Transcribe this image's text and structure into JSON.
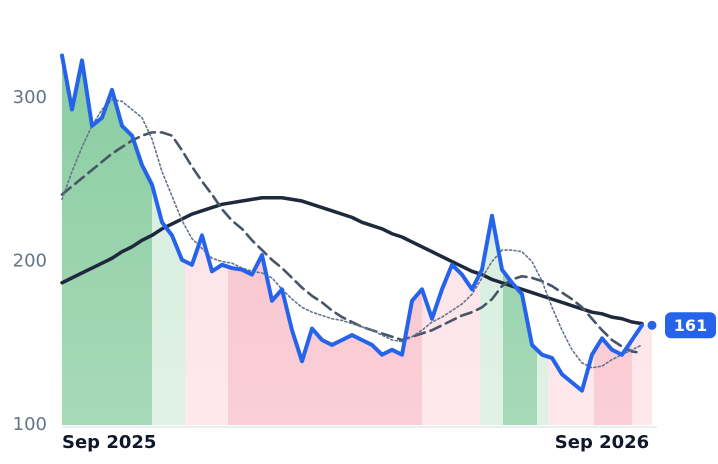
{
  "chart_data": {
    "type": "line",
    "categories": [
      "Sep 2025",
      null,
      null,
      null,
      null,
      null,
      null,
      null,
      null,
      null,
      null,
      null,
      null,
      null,
      null,
      null,
      null,
      null,
      null,
      null,
      null,
      null,
      null,
      null,
      null,
      null,
      null,
      null,
      null,
      null,
      null,
      null,
      null,
      null,
      null,
      null,
      null,
      null,
      null,
      null,
      null,
      null,
      null,
      null,
      null,
      null,
      null,
      null,
      null,
      null,
      null,
      null,
      null,
      null,
      "Sep 2026",
      null,
      null,
      null,
      null
    ],
    "series": [
      {
        "color": "#2563eb",
        "style": "solid",
        "width": 4,
        "values": [
          326,
          293,
          323,
          283,
          288,
          305,
          283,
          277,
          259,
          247,
          224,
          216,
          201,
          198,
          216,
          194,
          198,
          196,
          195,
          192,
          204,
          176,
          183,
          158,
          139,
          159,
          152,
          149,
          152,
          155,
          152,
          149,
          143,
          146,
          143,
          176,
          183,
          165,
          183,
          198,
          192,
          183,
          195,
          228,
          195,
          187,
          180,
          149,
          143,
          141,
          131,
          126,
          121,
          143,
          153,
          146,
          143,
          152,
          161
        ]
      },
      {
        "color": "#64748b",
        "style": "dotted",
        "width": 1.6,
        "values": [
          238,
          255,
          270,
          283,
          293,
          299,
          298,
          293,
          288,
          275,
          255,
          240,
          225,
          214,
          208,
          202,
          200,
          199,
          196,
          194,
          193,
          190,
          183,
          177,
          172,
          169,
          167,
          165,
          164,
          162,
          160,
          158,
          155,
          152,
          151,
          154,
          158,
          163,
          166,
          170,
          174,
          180,
          190,
          200,
          207,
          207,
          206,
          200,
          188,
          172,
          158,
          146,
          138,
          135,
          136,
          140,
          143,
          146,
          149
        ]
      },
      {
        "color": "#475569",
        "style": "dashed",
        "width": 2.6,
        "values": [
          241,
          246,
          251,
          256,
          261,
          266,
          270,
          274,
          277,
          279,
          279,
          277,
          268,
          258,
          249,
          241,
          232,
          225,
          220,
          213,
          207,
          201,
          196,
          190,
          184,
          179,
          175,
          170,
          166,
          163,
          160,
          158,
          156,
          154,
          152,
          154,
          156,
          158,
          161,
          164,
          167,
          169,
          172,
          177,
          185,
          189,
          191,
          190,
          188,
          185,
          181,
          177,
          172,
          165,
          158,
          152,
          148,
          145,
          144
        ]
      },
      {
        "color": "#1e293b",
        "style": "solid",
        "width": 3.5,
        "values": [
          187,
          190,
          193,
          196,
          199,
          202,
          206,
          209,
          213,
          216,
          220,
          223,
          226,
          229,
          231,
          233,
          235,
          236,
          237,
          238,
          239,
          239,
          239,
          238,
          237,
          235,
          233,
          231,
          229,
          227,
          224,
          222,
          220,
          217,
          215,
          212,
          209,
          206,
          203,
          200,
          197,
          194,
          192,
          189,
          187,
          185,
          183,
          181,
          179,
          177,
          175,
          173,
          171,
          169,
          168,
          166,
          165,
          163,
          162
        ]
      }
    ],
    "regions": [
      {
        "from": 0,
        "to": 9,
        "color": "#86cb9e"
      },
      {
        "from": 9,
        "to": 12.3,
        "color": "#d3ecdb"
      },
      {
        "from": 12.3,
        "to": 16.6,
        "color": "#fde0e5"
      },
      {
        "from": 16.6,
        "to": 36,
        "color": "#f8bdc8"
      },
      {
        "from": 36,
        "to": 41.8,
        "color": "#fde0e5"
      },
      {
        "from": 41.8,
        "to": 44.1,
        "color": "#d3ecdb"
      },
      {
        "from": 44.1,
        "to": 47.5,
        "color": "#86cb9e"
      },
      {
        "from": 47.5,
        "to": 48.6,
        "color": "#d3ecdb"
      },
      {
        "from": 48.6,
        "to": 53.2,
        "color": "#fde0e5"
      },
      {
        "from": 53.2,
        "to": 57,
        "color": "#f8bdc8"
      },
      {
        "from": 57,
        "to": 59,
        "color": "#fde0e5"
      }
    ],
    "ylim": [
      100,
      330
    ],
    "yticks": [
      100,
      200,
      300
    ],
    "grid": false
  }
}
